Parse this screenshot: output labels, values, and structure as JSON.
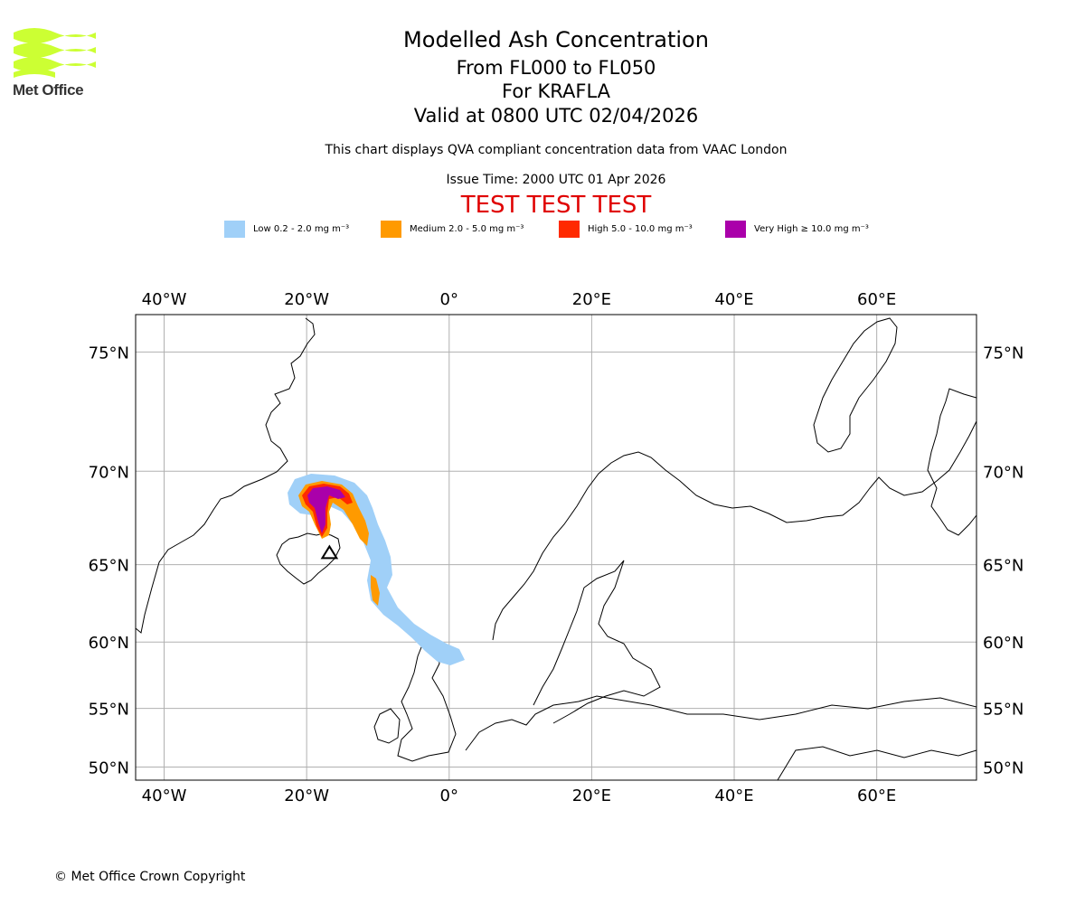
{
  "logo": {
    "text": "Met Office",
    "brand_color": "#ccff33",
    "text_color": "#333333"
  },
  "header": {
    "title": "Modelled Ash Concentration",
    "levels": "From FL000 to FL050",
    "volcano": "For KRAFLA",
    "valid": "Valid at 0800 UTC 02/04/2026",
    "compliance": "This chart displays QVA compliant concentration data from VAAC London",
    "issue_time": "Issue Time: 2000 UTC 01 Apr 2026",
    "test_banner": "TEST TEST TEST"
  },
  "legend": [
    {
      "label": "Low 0.2 - 2.0 mg m⁻³",
      "color": "#a0d0f8"
    },
    {
      "label": "Medium 2.0 - 5.0 mg m⁻³",
      "color": "#ff9a00"
    },
    {
      "label": "High 5.0 - 10.0 mg m⁻³",
      "color": "#ff2a00"
    },
    {
      "label": "Very High ≥ 10.0 mg m⁻³",
      "color": "#aa00aa"
    }
  ],
  "map": {
    "lon_range": [
      -44,
      74
    ],
    "lat_range": [
      48.8,
      76.3
    ],
    "lon_ticks": [
      {
        "value": -40,
        "label": "40°W"
      },
      {
        "value": -20,
        "label": "20°W"
      },
      {
        "value": 0,
        "label": "0°"
      },
      {
        "value": 20,
        "label": "20°E"
      },
      {
        "value": 40,
        "label": "40°E"
      },
      {
        "value": 60,
        "label": "60°E"
      }
    ],
    "lat_ticks": [
      {
        "value": 75,
        "label": "75°N"
      },
      {
        "value": 70,
        "label": "70°N"
      },
      {
        "value": 65,
        "label": "65°N"
      },
      {
        "value": 60,
        "label": "60°N"
      },
      {
        "value": 55,
        "label": "55°N"
      },
      {
        "value": 50,
        "label": "50°N"
      }
    ],
    "volcano_marker": {
      "name": "Krafla",
      "lon": -16.8,
      "lat": 65.7
    }
  },
  "footer": {
    "copyright": "© Met Office Crown Copyright"
  }
}
